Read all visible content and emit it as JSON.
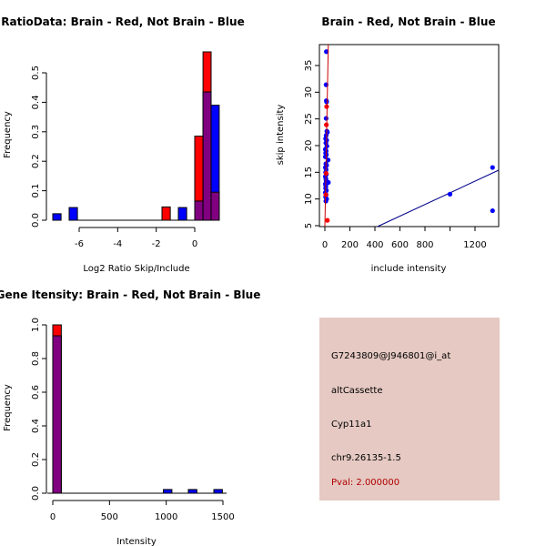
{
  "colors": {
    "brain": "#ff0000",
    "not_brain": "#0000ff",
    "overlap": "#800080",
    "panel_bg": "#e5c9c2",
    "pval_text": "#b00000"
  },
  "chart_data": [
    {
      "id": "ratio-hist",
      "type": "bar",
      "title": "RatioData: Brain - Red, Not Brain - Blue",
      "xlabel": "Log2 Ratio Skip/Include",
      "ylabel": "Frequency",
      "xlim": [
        -7.6,
        1.5
      ],
      "ylim": [
        0,
        0.5
      ],
      "xticks": [
        -6,
        -4,
        -2,
        0
      ],
      "yticks": [
        0.0,
        0.1,
        0.2,
        0.3,
        0.4,
        0.5
      ],
      "ytick_labels": [
        "0.0",
        "0.1",
        "0.2",
        "0.3",
        "0.4",
        "0.5"
      ],
      "bin_edges_brain": [
        [
          -1.7,
          -1.27
        ],
        [
          0.0,
          0.43
        ],
        [
          0.43,
          0.85
        ],
        [
          0.85,
          1.27
        ]
      ],
      "series": [
        {
          "name": "Brain",
          "color": "#ff0000",
          "bins": [
            [
              -1.7,
              -1.27,
              0.045
            ],
            [
              0.0,
              0.43,
              0.285
            ],
            [
              0.43,
              0.85,
              0.571
            ],
            [
              0.85,
              1.27,
              0.095
            ]
          ]
        },
        {
          "name": "Not Brain",
          "color": "#0000ff",
          "bins": [
            [
              -7.37,
              -6.94,
              0.022
            ],
            [
              -6.52,
              -6.09,
              0.043
            ],
            [
              -0.85,
              -0.42,
              0.043
            ],
            [
              0.0,
              0.43,
              0.065
            ],
            [
              0.43,
              0.85,
              0.435
            ],
            [
              0.85,
              1.27,
              0.39
            ]
          ]
        }
      ]
    },
    {
      "id": "intensity-scatter",
      "type": "scatter",
      "title": "Brain - Red, Not Brain - Blue",
      "xlabel": "include intensity",
      "ylabel": "skip intensity",
      "xlim": [
        -40,
        1390
      ],
      "ylim": [
        4.8,
        38.9
      ],
      "xticks": [
        0,
        200,
        400,
        600,
        800,
        1000,
        1200
      ],
      "xtick_labels": [
        "0",
        "200",
        "400",
        "600",
        "800",
        "",
        "1200"
      ],
      "yticks": [
        5,
        10,
        15,
        20,
        25,
        30,
        35
      ],
      "series": [
        {
          "name": "Not Brain",
          "color": "#0000ff",
          "points": [
            [
              12,
              37.6
            ],
            [
              10,
              31.4
            ],
            [
              12,
              28.4
            ],
            [
              14,
              28.2
            ],
            [
              10,
              25.1
            ],
            [
              16,
              22.7
            ],
            [
              20,
              22.5
            ],
            [
              10,
              21.9
            ],
            [
              6,
              21.3
            ],
            [
              14,
              21.0
            ],
            [
              8,
              20.5
            ],
            [
              16,
              19.9
            ],
            [
              4,
              19.3
            ],
            [
              10,
              19.0
            ],
            [
              6,
              18.6
            ],
            [
              12,
              18.3
            ],
            [
              4,
              17.9
            ],
            [
              26,
              17.3
            ],
            [
              8,
              16.6
            ],
            [
              14,
              16.3
            ],
            [
              4,
              15.9
            ],
            [
              10,
              15.5
            ],
            [
              6,
              15.0
            ],
            [
              12,
              14.6
            ],
            [
              4,
              14.2
            ],
            [
              8,
              13.8
            ],
            [
              10,
              13.4
            ],
            [
              28,
              13.1
            ],
            [
              4,
              12.8
            ],
            [
              8,
              12.4
            ],
            [
              6,
              12.0
            ],
            [
              12,
              11.6
            ],
            [
              4,
              11.2
            ],
            [
              10,
              10.8
            ],
            [
              6,
              10.4
            ],
            [
              14,
              10.0
            ],
            [
              8,
              9.6
            ],
            [
              1000,
              10.9
            ],
            [
              1340,
              15.9
            ],
            [
              1340,
              7.8
            ]
          ],
          "fit": [
            [
              420,
              4.6
            ],
            [
              1400,
              15.4
            ]
          ]
        },
        {
          "name": "Brain",
          "color": "#ff0000",
          "points": [
            [
              14,
              27.3
            ],
            [
              12,
              23.9
            ],
            [
              10,
              14.8
            ],
            [
              8,
              10.8
            ],
            [
              20,
              6.0
            ]
          ],
          "fit": [
            [
              0,
              4.8
            ],
            [
              20,
              38.9
            ]
          ]
        }
      ]
    },
    {
      "id": "gene-intensity-hist",
      "type": "bar",
      "title": "Gene Itensity: Brain - Red, Not Brain - Blue",
      "xlabel": "Intensity",
      "ylabel": "Frequency",
      "xlim": [
        -40,
        1530
      ],
      "ylim": [
        0,
        1.0
      ],
      "xticks": [
        0,
        500,
        1000,
        1500
      ],
      "yticks": [
        0.0,
        0.2,
        0.4,
        0.6,
        0.8,
        1.0
      ],
      "ytick_labels": [
        "0.0",
        "0.2",
        "0.4",
        "0.6",
        "0.8",
        "1.0"
      ],
      "series": [
        {
          "name": "Brain",
          "color": "#ff0000",
          "bins": [
            [
              0,
              75,
              1.0
            ]
          ]
        },
        {
          "name": "Not Brain",
          "color": "#0000ff",
          "bins": [
            [
              0,
              75,
              0.935
            ],
            [
              975,
              1050,
              0.022
            ],
            [
              1195,
              1270,
              0.022
            ],
            [
              1420,
              1495,
              0.022
            ]
          ]
        }
      ]
    }
  ],
  "info_panel": {
    "probe_id": "G7243809@J946801@i_at",
    "event_type": "altCassette",
    "gene": "Cyp11a1",
    "location": "chr9.26135-1.5",
    "pval": "Pval: 2.000000"
  }
}
